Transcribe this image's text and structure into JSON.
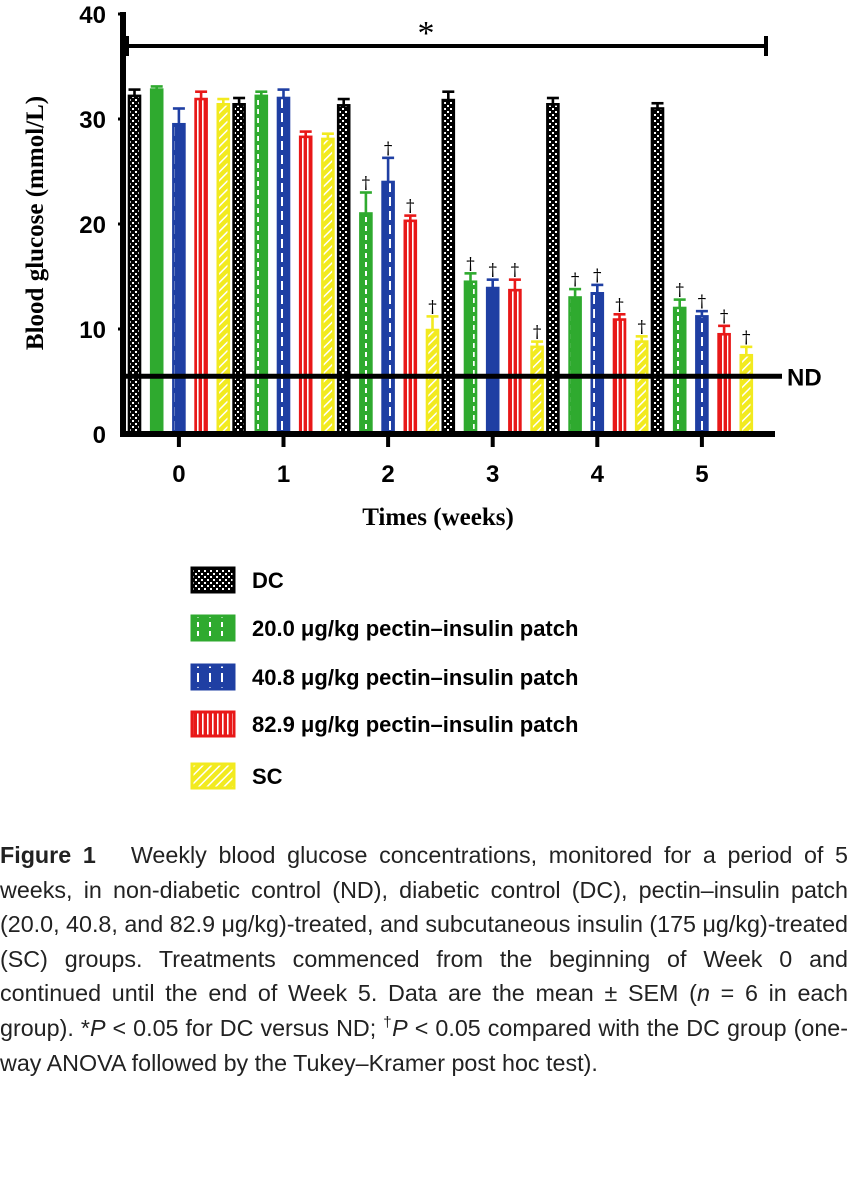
{
  "chart_data": {
    "type": "bar",
    "xlabel": "Times (weeks)",
    "ylabel": "Blood glucose (mmol/L)",
    "ylim": [
      0,
      40
    ],
    "yticks": [
      "0",
      "10",
      "20",
      "30",
      "40"
    ],
    "categories": [
      "0",
      "1",
      "2",
      "3",
      "4",
      "5"
    ],
    "series": [
      {
        "name": "DC",
        "color": "#000000",
        "pattern": "checker",
        "values": [
          32.2,
          31.4,
          31.3,
          31.8,
          31.4,
          31.0
        ],
        "errors": [
          0.6,
          0.6,
          0.6,
          0.8,
          0.6,
          0.5
        ]
      },
      {
        "name": "20.0 μg/kg pectin–insulin patch",
        "color": "#2faa2f",
        "pattern": "small-dash",
        "values": [
          32.8,
          32.2,
          21.0,
          14.5,
          13.0,
          12.0
        ],
        "errors": [
          0.3,
          0.4,
          2.0,
          0.8,
          0.8,
          0.8
        ]
      },
      {
        "name": "40.8 μg/kg pectin–insulin patch",
        "color": "#1f3fa3",
        "pattern": "long-dash",
        "values": [
          29.5,
          32.0,
          24.0,
          13.9,
          13.4,
          11.2
        ],
        "errors": [
          1.5,
          0.8,
          2.3,
          0.8,
          0.8,
          0.5
        ]
      },
      {
        "name": "82.9 μg/kg pectin–insulin patch",
        "color": "#e81818",
        "pattern": "vertical",
        "values": [
          31.9,
          28.3,
          20.3,
          13.7,
          10.9,
          9.5
        ],
        "errors": [
          0.7,
          0.5,
          0.5,
          1.0,
          0.5,
          0.8
        ]
      },
      {
        "name": "SC",
        "color": "#f2ea1f",
        "pattern": "diagonal",
        "values": [
          31.4,
          28.1,
          9.9,
          8.3,
          8.8,
          7.5
        ],
        "errors": [
          0.5,
          0.5,
          1.3,
          0.5,
          0.5,
          0.8
        ]
      }
    ],
    "daggers": [
      [
        false,
        false,
        false,
        false,
        false,
        false
      ],
      [
        false,
        false,
        true,
        true,
        true,
        true
      ],
      [
        false,
        false,
        true,
        true,
        true,
        true
      ],
      [
        false,
        false,
        true,
        true,
        true,
        true
      ],
      [
        false,
        false,
        true,
        true,
        true,
        true
      ]
    ],
    "dagger_symbol": "†",
    "reference_line": {
      "label": "ND",
      "value": 5.5
    },
    "significance": {
      "symbol": "*",
      "span": [
        "0",
        "5"
      ]
    },
    "legend": {
      "position": "bottom"
    }
  },
  "caption": {
    "figure_label": "Figure 1",
    "part1": "Weekly blood glucose concentrations, monitored for a period of 5 weeks, in non-diabetic control (ND), diabetic control (DC), pectin–insulin patch (20.0, 40.8, and 82.9 μg/kg)-treated, and subcutaneous insulin (175 μg/kg)-treated (SC) groups. Treatments commenced from the beginning of Week 0 and continued until the end of Week 5. Data are the mean ± SEM (",
    "n_symbol": "n",
    "part2": " = 6 in each group). ",
    "star": "*",
    "p_symbol_1": "P",
    "part3": " < 0.05 for DC versus ND; ",
    "dagger": "†",
    "p_symbol_2": "P",
    "part4": " < 0.05 compared with the DC group (one-way ANOVA  followed by the Tukey–Kramer post hoc test)."
  }
}
